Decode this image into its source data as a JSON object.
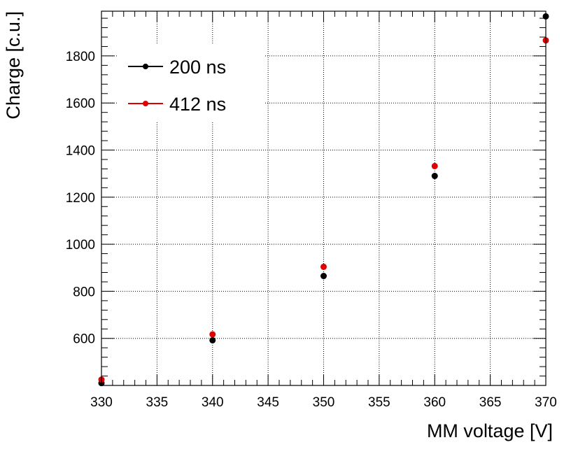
{
  "chart_data": {
    "type": "scatter",
    "xlabel": "MM voltage [V]",
    "ylabel": "Charge [c.u.]",
    "xlim": [
      330,
      370
    ],
    "ylim": [
      400,
      1990
    ],
    "x_ticks": [
      330,
      335,
      340,
      345,
      350,
      355,
      360,
      365,
      370
    ],
    "y_ticks": [
      600,
      800,
      1000,
      1200,
      1400,
      1600,
      1800
    ],
    "x_tick_labels": [
      "330",
      "335",
      "340",
      "345",
      "350",
      "355",
      "360",
      "365",
      "370"
    ],
    "y_tick_labels": [
      "600",
      "800",
      "1000",
      "1200",
      "1400",
      "1600",
      "1800"
    ],
    "grid": true,
    "legend_position": "top-left",
    "series": [
      {
        "name": "200 ns",
        "color": "#000000",
        "x": [
          330,
          340,
          350,
          360,
          370
        ],
        "y": [
          410,
          592,
          865,
          1290,
          1968
        ]
      },
      {
        "name": "412 ns",
        "color": "#e00000",
        "x": [
          330,
          340,
          350,
          360,
          370
        ],
        "y": [
          425,
          617,
          904,
          1332,
          1866
        ]
      }
    ]
  }
}
